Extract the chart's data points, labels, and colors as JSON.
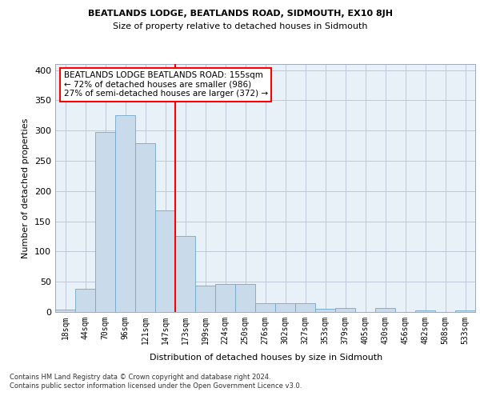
{
  "title1": "BEATLANDS LODGE, BEATLANDS ROAD, SIDMOUTH, EX10 8JH",
  "title2": "Size of property relative to detached houses in Sidmouth",
  "xlabel": "Distribution of detached houses by size in Sidmouth",
  "ylabel": "Number of detached properties",
  "footnote": "Contains HM Land Registry data © Crown copyright and database right 2024.\nContains public sector information licensed under the Open Government Licence v3.0.",
  "bin_labels": [
    "18sqm",
    "44sqm",
    "70sqm",
    "96sqm",
    "121sqm",
    "147sqm",
    "173sqm",
    "199sqm",
    "224sqm",
    "250sqm",
    "276sqm",
    "302sqm",
    "327sqm",
    "353sqm",
    "379sqm",
    "405sqm",
    "430sqm",
    "456sqm",
    "482sqm",
    "508sqm",
    "533sqm"
  ],
  "bar_heights": [
    4,
    38,
    297,
    326,
    279,
    168,
    125,
    44,
    46,
    46,
    15,
    15,
    15,
    5,
    6,
    0,
    6,
    0,
    3,
    0,
    3
  ],
  "bar_color": "#c9daea",
  "bar_edge_color": "#6fa8c8",
  "bar_width": 1.0,
  "vline_color": "red",
  "annotation_text": "BEATLANDS LODGE BEATLANDS ROAD: 155sqm\n← 72% of detached houses are smaller (986)\n27% of semi-detached houses are larger (372) →",
  "annotation_box_color": "white",
  "annotation_box_edge": "red",
  "ylim": [
    0,
    410
  ],
  "yticks": [
    0,
    50,
    100,
    150,
    200,
    250,
    300,
    350,
    400
  ],
  "grid_color": "#c0c8d8",
  "background_color": "#e8f0f8"
}
